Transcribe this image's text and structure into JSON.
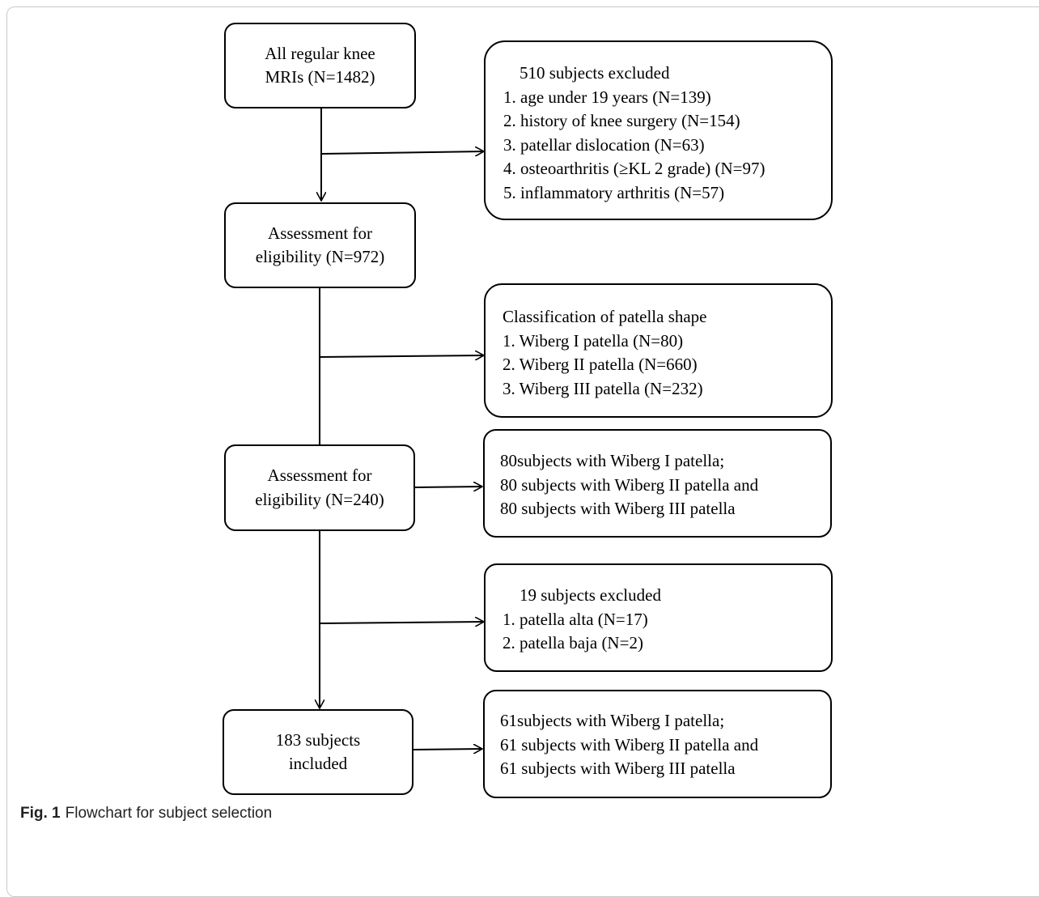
{
  "boxes": {
    "all_mris": [
      "All regular knee",
      "MRIs (N=1482)"
    ],
    "excluded_510": {
      "heading": "510 subjects excluded",
      "items": [
        "1.  age under 19 years (N=139)",
        "2.  history of knee surgery (N=154)",
        "3.  patellar dislocation (N=63)",
        "4.  osteoarthritis (≥KL 2 grade)  (N=97)",
        "5.  inflammatory arthritis (N=57)"
      ]
    },
    "assessment_972": [
      "Assessment for",
      "eligibility  (N=972)"
    ],
    "classification": {
      "heading": "Classification of patella shape",
      "items": [
        "1.  Wiberg I patella (N=80)",
        "2.  Wiberg II patella (N=660)",
        "3.  Wiberg III patella (N=232)"
      ]
    },
    "assessment_240": [
      "Assessment for",
      "eligibility  (N=240)"
    ],
    "groups_80": [
      "80subjects with Wiberg I patella;",
      "80 subjects with Wiberg II patella and",
      "80 subjects with Wiberg III patella"
    ],
    "excluded_19": {
      "heading": "19 subjects excluded",
      "items": [
        "1.  patella alta (N=17)",
        "2.  patella baja  (N=2)"
      ]
    },
    "included_183": [
      "183 subjects",
      "included"
    ],
    "groups_61": [
      "61subjects with Wiberg I patella;",
      "61 subjects with Wiberg II patella and",
      "61 subjects with Wiberg III patella"
    ]
  },
  "caption": {
    "label": "Fig. 1",
    "text": "Flowchart for subject selection"
  }
}
